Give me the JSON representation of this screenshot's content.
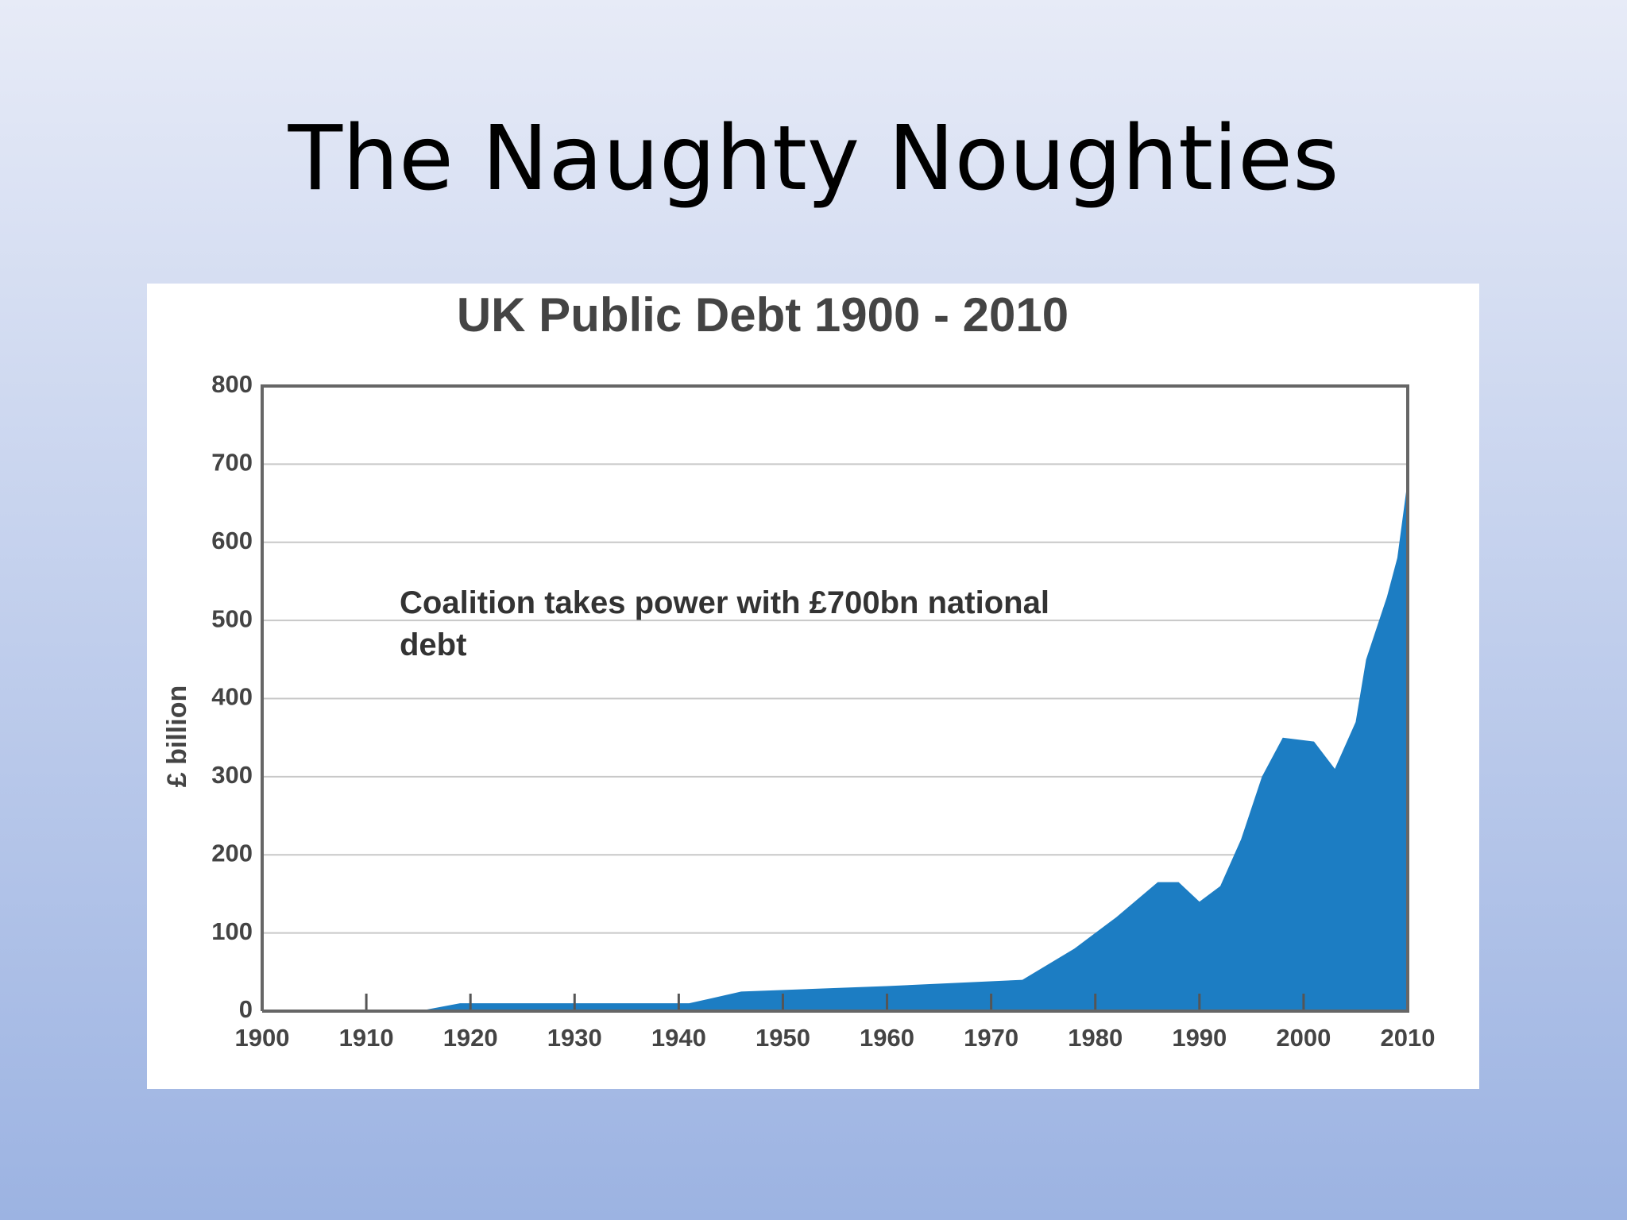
{
  "slide_title": "The Naughty Noughties",
  "chart_data": {
    "type": "area",
    "title": "UK Public Debt 1900 - 2010",
    "ylabel": "£ billion",
    "annotation": "Coalition takes power with £700bn national debt",
    "x": [
      1900,
      1915,
      1919,
      1941,
      1946,
      1960,
      1973,
      1978,
      1982,
      1986,
      1988,
      1990,
      1992,
      1994,
      1996,
      1998,
      2001,
      2003,
      2005,
      2006,
      2008,
      2009,
      2010
    ],
    "values": [
      0,
      0,
      10,
      10,
      25,
      32,
      40,
      80,
      120,
      165,
      165,
      140,
      160,
      220,
      300,
      350,
      345,
      310,
      370,
      450,
      530,
      580,
      680
    ],
    "color": "#1c7dc3",
    "xlim": [
      1900,
      2010
    ],
    "xticks": [
      1900,
      1910,
      1920,
      1930,
      1940,
      1950,
      1960,
      1970,
      1980,
      1990,
      2000,
      2010
    ],
    "ylim": [
      0,
      800
    ],
    "yticks": [
      0,
      100,
      200,
      300,
      400,
      500,
      600,
      700,
      800
    ],
    "grid": true
  }
}
